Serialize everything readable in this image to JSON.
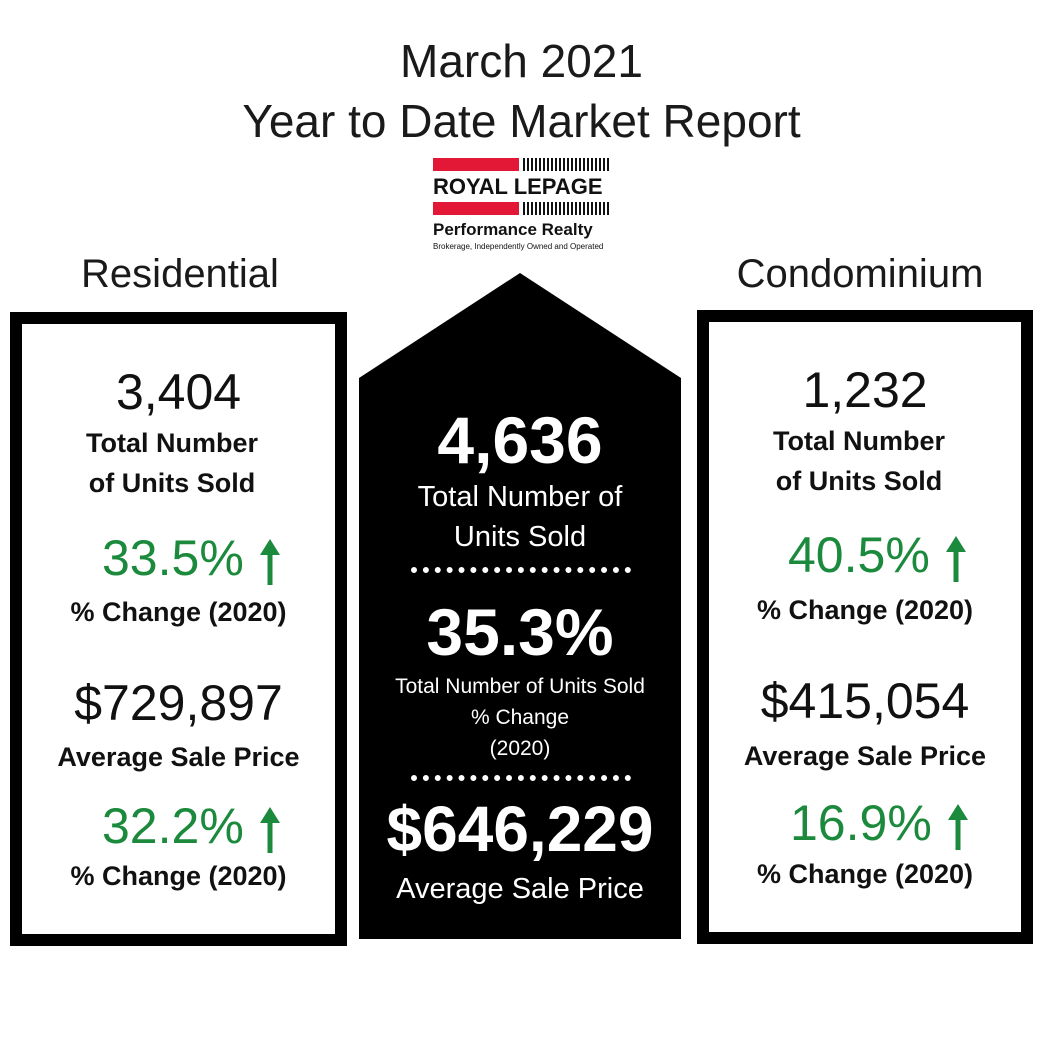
{
  "title": {
    "line1": "March 2021",
    "line2": "Year to Date Market Report"
  },
  "logo": {
    "brand": "ROYAL LEPAGE",
    "name": "Performance Realty",
    "tagline": "Brokerage, Independently Owned and Operated"
  },
  "residential": {
    "heading": "Residential",
    "units": "3,404",
    "units_label_1": "Total Number",
    "units_label_2": "of Units Sold",
    "units_change": "33.5%",
    "units_change_label": "% Change (2020)",
    "price": "$729,897",
    "price_label": "Average Sale Price",
    "price_change": "32.2%",
    "price_change_label": "% Change (2020)"
  },
  "condominium": {
    "heading": "Condominium",
    "units": "1,232",
    "units_label_1": "Total Number",
    "units_label_2": "of Units Sold",
    "units_change": "40.5%",
    "units_change_label": "% Change (2020)",
    "price": "$415,054",
    "price_label": "Average Sale Price",
    "price_change": "16.9%",
    "price_change_label": "% Change (2020)"
  },
  "total": {
    "units": "4,636",
    "units_label_1": "Total Number of",
    "units_label_2": "Units Sold",
    "change": "35.3%",
    "change_label_1": "Total Number of Units Sold",
    "change_label_2": "% Change",
    "change_label_3": "(2020)",
    "price": "$646,229",
    "price_label": "Average Sale Price"
  },
  "colors": {
    "positive": "#1b8a3c",
    "brand_red": "#e31837",
    "black": "#000000"
  },
  "icons": {
    "up_arrow": "arrow-up-icon"
  }
}
